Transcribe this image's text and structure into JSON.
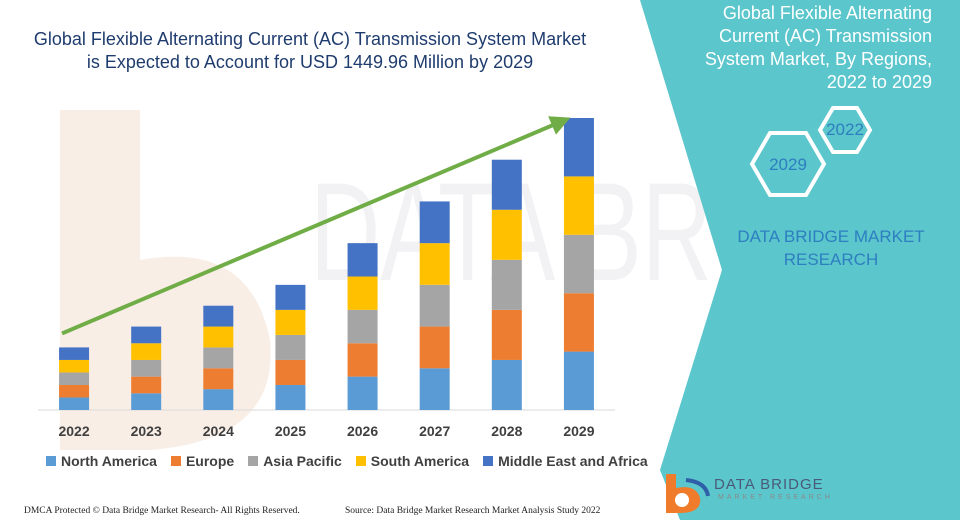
{
  "title": "Global Flexible Alternating Current (AC) Transmission System Market is Expected to Account for USD 1449.96 Million by 2029",
  "panel": {
    "title": "Global Flexible Alternating Current (AC) Transmission System Market, By Regions, 2022 to 2029",
    "hex_start": "2029",
    "hex_end": "2022",
    "brand": "DATA BRIDGE MARKET RESEARCH",
    "bg_color": "#5bc6cc"
  },
  "footer": {
    "left": "DMCA Protected © Data Bridge Market Research- All Rights Reserved.",
    "right": "Source: Data Bridge Market Research Market Analysis Study 2022"
  },
  "logo": {
    "name": "DATA BRIDGE",
    "sub": "MARKET RESEARCH"
  },
  "watermark_text": "DATA BRIDGE",
  "chart_data": {
    "type": "bar",
    "stacked": true,
    "categories": [
      "2022",
      "2023",
      "2024",
      "2025",
      "2026",
      "2027",
      "2028",
      "2029"
    ],
    "series": [
      {
        "name": "North America",
        "color": "#5b9bd5",
        "values": [
          3,
          4,
          5,
          6,
          8,
          10,
          12,
          14
        ]
      },
      {
        "name": "Europe",
        "color": "#ed7d31",
        "values": [
          3,
          4,
          5,
          6,
          8,
          10,
          12,
          14
        ]
      },
      {
        "name": "Asia Pacific",
        "color": "#a5a5a5",
        "values": [
          3,
          4,
          5,
          6,
          8,
          10,
          12,
          14
        ]
      },
      {
        "name": "South America",
        "color": "#ffc000",
        "values": [
          3,
          4,
          5,
          6,
          8,
          10,
          12,
          14
        ]
      },
      {
        "name": "Middle East and Africa",
        "color": "#4472c4",
        "values": [
          3,
          4,
          5,
          6,
          8,
          10,
          12,
          14
        ]
      }
    ],
    "ylim": [
      0,
      70
    ],
    "trend_arrow": true,
    "arrow_color": "#70ad47",
    "grid": false,
    "legend_position": "bottom"
  }
}
